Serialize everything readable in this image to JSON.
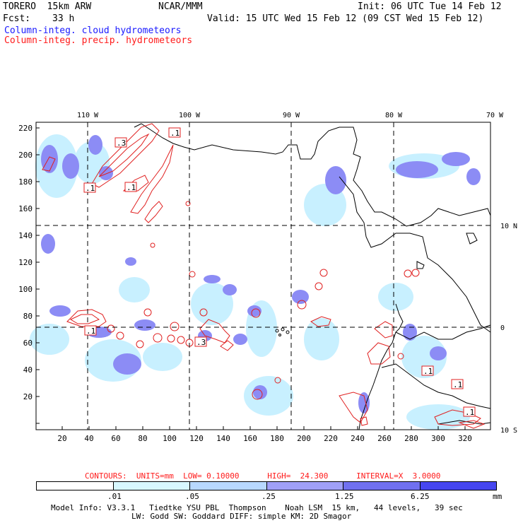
{
  "header": {
    "model": "TORERO  15km ARW",
    "org": "NCAR/MMM",
    "init": "Init: 06 UTC Tue 14 Feb 12",
    "fcst_label": "Fcst:",
    "fcst_value": "33 h",
    "valid": "Valid: 15 UTC Wed 15 Feb 12 (09 CST Wed 15 Feb 12)",
    "field1": "Column-integ. cloud hydrometeors",
    "field2": "Column-integ. precip. hydrometeors"
  },
  "colors": {
    "cloud_fill": "#8c8cf5",
    "cloud_light": "#c8f0ff",
    "precip_contour": "#e02020",
    "coast": "#000000"
  },
  "map": {
    "lon_labels": [
      "110 W",
      "100 W",
      "90 W",
      "80 W",
      "70 W"
    ],
    "lat_labels": [
      "10 N",
      "0",
      "10 S"
    ],
    "y_ticks": [
      "220",
      "200",
      "180",
      "160",
      "140",
      "120",
      "100",
      "80",
      "60",
      "40",
      "20"
    ],
    "x_ticks": [
      "20",
      "40",
      "60",
      "80",
      "100",
      "120",
      "140",
      "160",
      "180",
      "200",
      "220",
      "240",
      "260",
      "280",
      "300",
      "320"
    ],
    "contour_labels": [
      ".1",
      ".1",
      ".1",
      ".3",
      ".1",
      ".3",
      ".1",
      ".1",
      ".1"
    ]
  },
  "legend": {
    "contours_text": "CONTOURS:  UNITS=mm  LOW= 0.10000      HIGH=  24.300      INTERVAL=X  3.0000",
    "ticks": [
      ".01",
      ".05",
      ".25",
      "1.25",
      "6.25"
    ],
    "unit": "mm",
    "colors": [
      "#ffffff",
      "#d8f8ff",
      "#b8d8ff",
      "#a0a0f8",
      "#7070f0",
      "#4646f0",
      "#2020e8"
    ]
  },
  "footer": {
    "line1": "Model Info: V3.3.1   Tiedtke YSU PBL  Thompson    Noah LSM  15 km,   44 levels,   39 sec",
    "line2": "LW: Godd SW: Goddard DIFF: simple KM: 2D Smagor"
  }
}
